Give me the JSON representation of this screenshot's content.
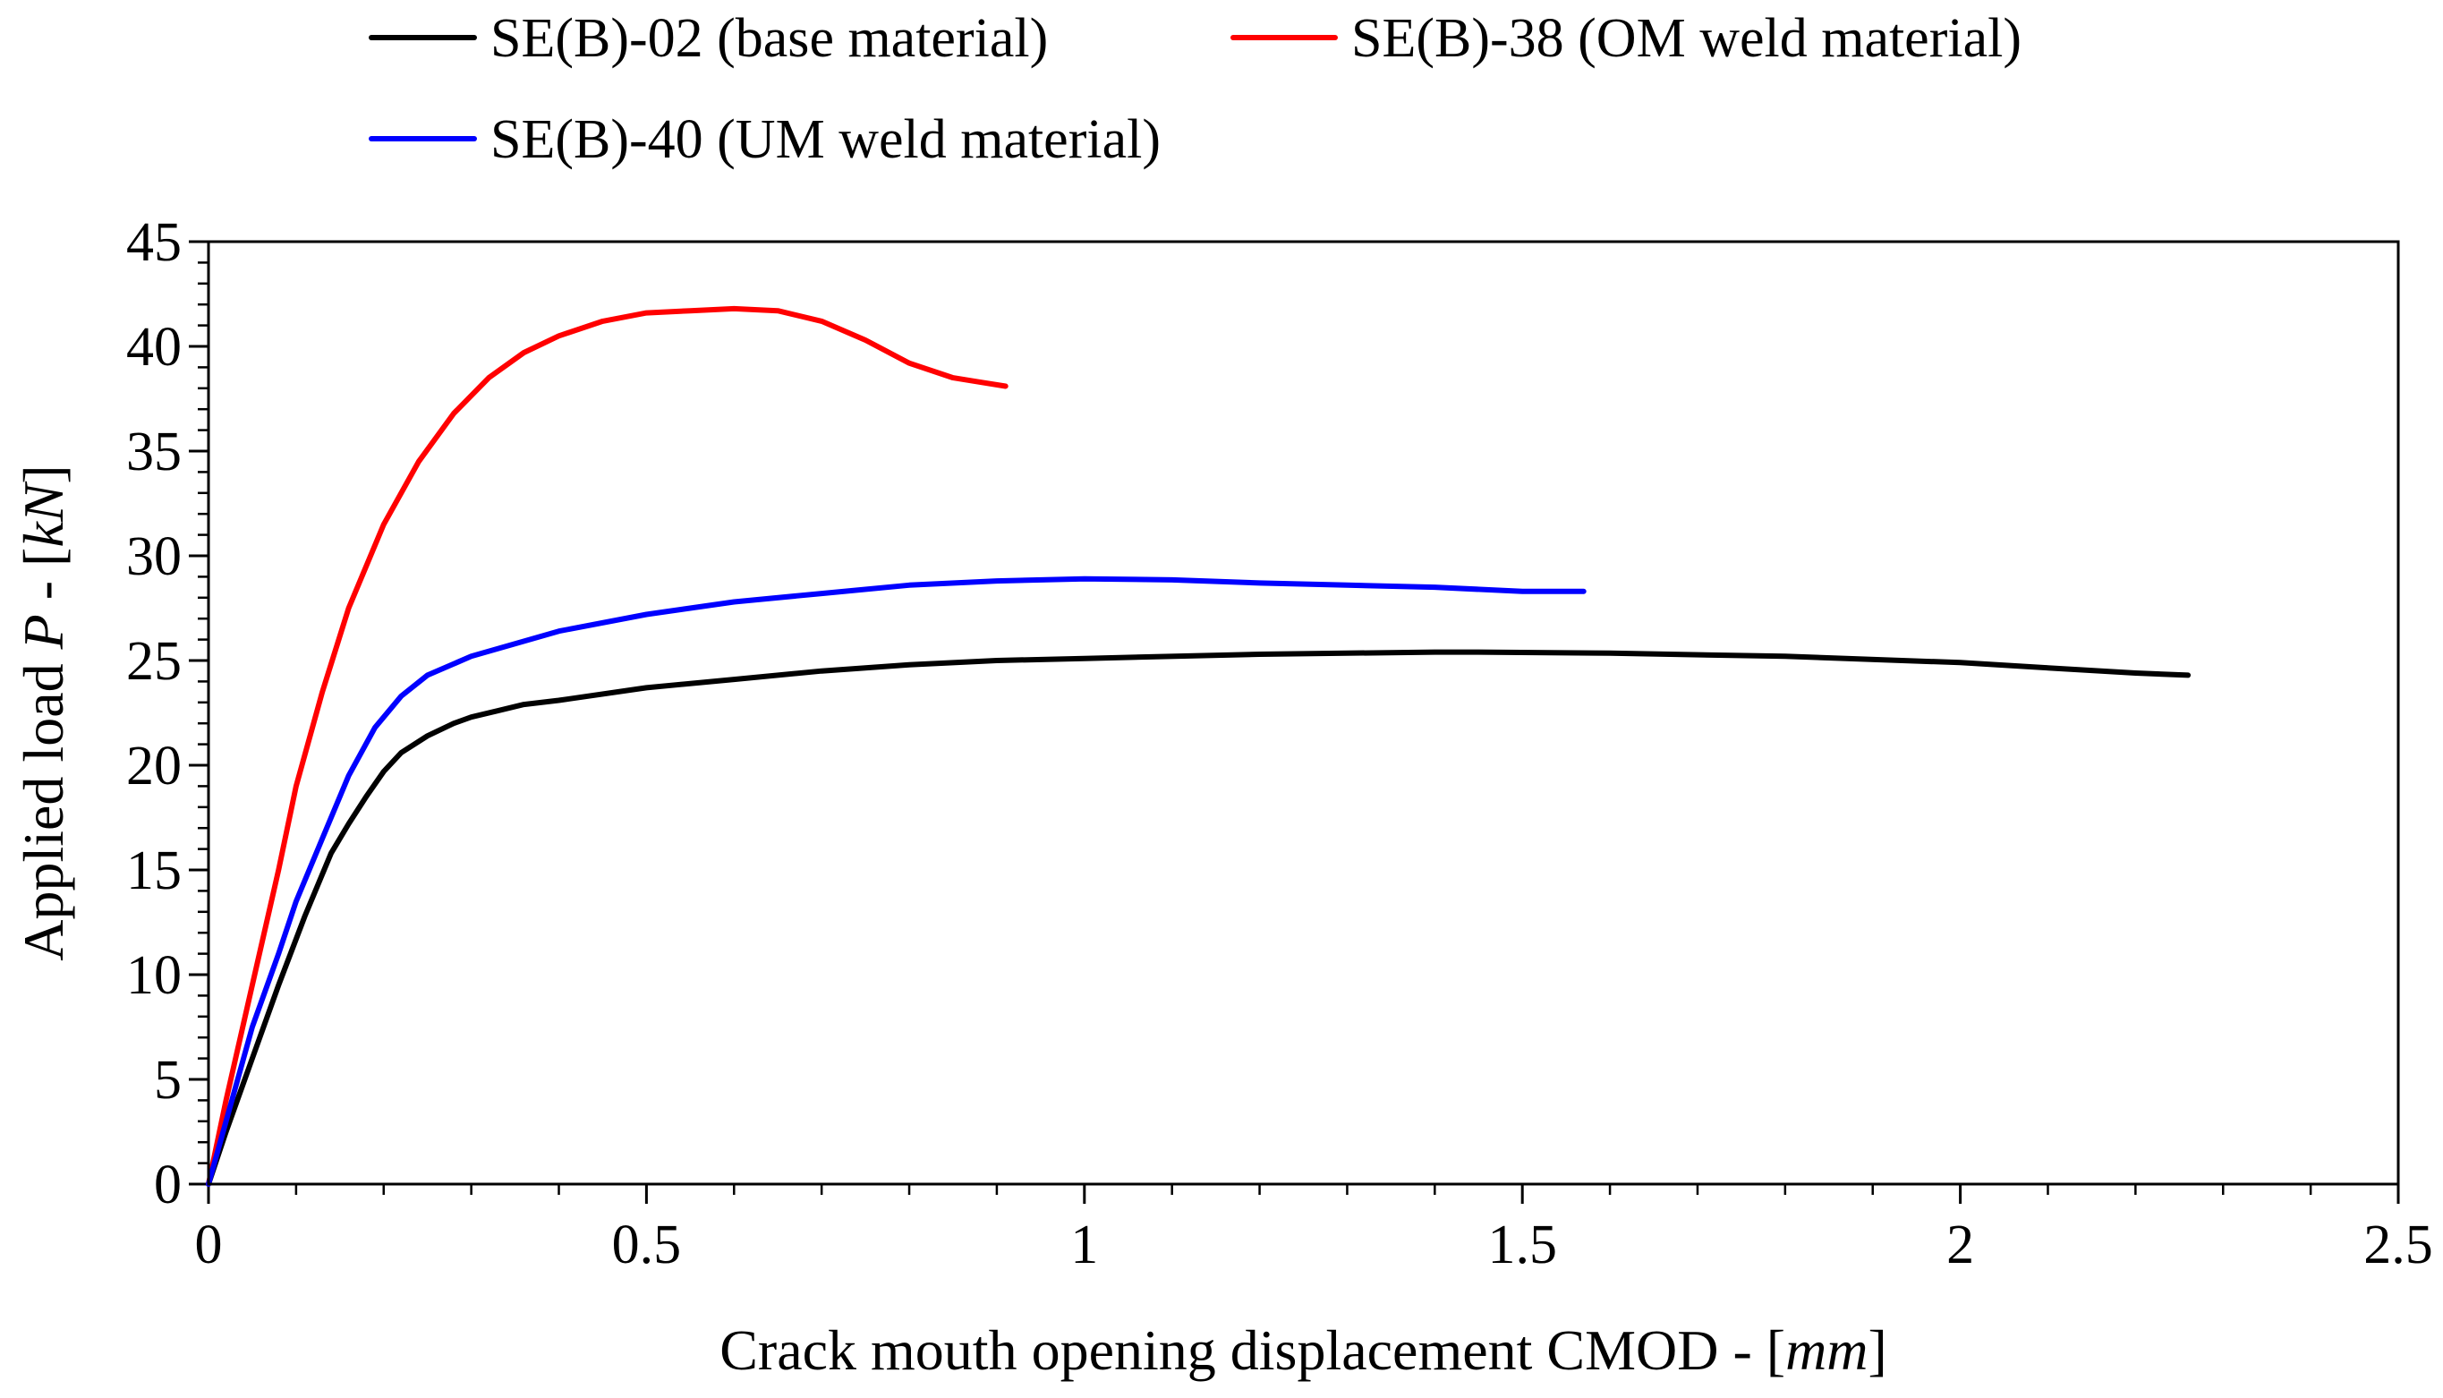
{
  "chart_data": {
    "type": "line",
    "title": "",
    "xlabel": {
      "prefix": "Crack mouth opening displacement CMOD - [",
      "unit": "mm",
      "suffix": "]"
    },
    "ylabel": {
      "prefix": "Applied load ",
      "symbol": "P",
      "middle": " - [",
      "unit": "kN",
      "suffix": "]"
    },
    "xlim": [
      0,
      2.5
    ],
    "ylim": [
      0,
      45
    ],
    "xticks": [
      0,
      0.5,
      1,
      1.5,
      2,
      2.5
    ],
    "xtick_labels": [
      "0",
      "0.5",
      "1",
      "1.5",
      "2",
      "2.5"
    ],
    "yticks": [
      0,
      5,
      10,
      15,
      20,
      25,
      30,
      35,
      40,
      45
    ],
    "ytick_labels": [
      "0",
      "5",
      "10",
      "15",
      "20",
      "25",
      "30",
      "35",
      "40",
      "45"
    ],
    "x_minor_step": 0.1,
    "y_minor_step": 1,
    "grid": false,
    "legend_position": "top",
    "series": [
      {
        "name": "SE(B)-02 (base material)",
        "color": "#000000",
        "x": [
          0,
          0.02,
          0.05,
          0.08,
          0.11,
          0.14,
          0.16,
          0.18,
          0.2,
          0.22,
          0.25,
          0.28,
          0.3,
          0.33,
          0.36,
          0.4,
          0.5,
          0.6,
          0.7,
          0.8,
          0.9,
          1.0,
          1.2,
          1.4,
          1.45,
          1.6,
          1.8,
          2.0,
          2.1,
          2.2,
          2.26
        ],
        "y": [
          0,
          2.5,
          6,
          9.5,
          12.8,
          15.8,
          17.2,
          18.5,
          19.7,
          20.6,
          21.4,
          22.0,
          22.3,
          22.6,
          22.9,
          23.1,
          23.7,
          24.1,
          24.5,
          24.8,
          25.0,
          25.1,
          25.3,
          25.4,
          25.4,
          25.35,
          25.2,
          24.9,
          24.65,
          24.4,
          24.3
        ]
      },
      {
        "name": "SE(B)-38 (OM weld material)",
        "color": "#ff0000",
        "x": [
          0,
          0.02,
          0.05,
          0.08,
          0.1,
          0.13,
          0.16,
          0.2,
          0.24,
          0.28,
          0.32,
          0.36,
          0.4,
          0.45,
          0.5,
          0.55,
          0.6,
          0.65,
          0.7,
          0.75,
          0.8,
          0.85,
          0.88,
          0.91
        ],
        "y": [
          0,
          4,
          9.5,
          15,
          19,
          23.5,
          27.5,
          31.5,
          34.5,
          36.8,
          38.5,
          39.7,
          40.5,
          41.2,
          41.6,
          41.7,
          41.8,
          41.7,
          41.2,
          40.3,
          39.2,
          38.5,
          38.3,
          38.1
        ]
      },
      {
        "name": "SE(B)-40 (UM weld material)",
        "color": "#0000ff",
        "x": [
          0,
          0.02,
          0.05,
          0.08,
          0.1,
          0.13,
          0.16,
          0.19,
          0.22,
          0.25,
          0.3,
          0.35,
          0.4,
          0.5,
          0.6,
          0.7,
          0.8,
          0.9,
          1.0,
          1.1,
          1.2,
          1.3,
          1.4,
          1.5,
          1.57
        ],
        "y": [
          0,
          3,
          7.5,
          11,
          13.5,
          16.5,
          19.5,
          21.8,
          23.3,
          24.3,
          25.2,
          25.8,
          26.4,
          27.2,
          27.8,
          28.2,
          28.6,
          28.8,
          28.9,
          28.85,
          28.7,
          28.6,
          28.5,
          28.3,
          28.3
        ]
      }
    ]
  }
}
